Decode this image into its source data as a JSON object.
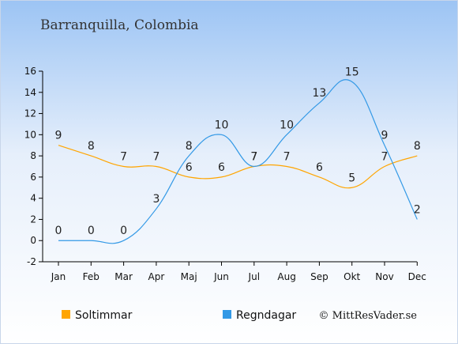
{
  "chart_data": {
    "type": "line",
    "title": "Barranquilla, Colombia",
    "categories": [
      "Jan",
      "Feb",
      "Mar",
      "Apr",
      "Maj",
      "Jun",
      "Jul",
      "Aug",
      "Sep",
      "Okt",
      "Nov",
      "Dec"
    ],
    "series": [
      {
        "name": "Soltimmar",
        "color": "#FFA500",
        "values": [
          9,
          8,
          7,
          7,
          6,
          6,
          7,
          7,
          6,
          5,
          7,
          8
        ]
      },
      {
        "name": "Regndagar",
        "color": "#3399E6",
        "values": [
          0,
          0,
          0,
          3,
          8,
          10,
          7,
          10,
          13,
          15,
          9,
          2
        ]
      }
    ],
    "ylim": [
      -2,
      16
    ],
    "yticks": [
      "-2",
      "0",
      "2",
      "4",
      "6",
      "8",
      "10",
      "12",
      "14",
      "16"
    ],
    "xlabel": "",
    "ylabel": "",
    "grid": false,
    "legend_position": "bottom-left",
    "credit": "© MittResVader.se"
  }
}
